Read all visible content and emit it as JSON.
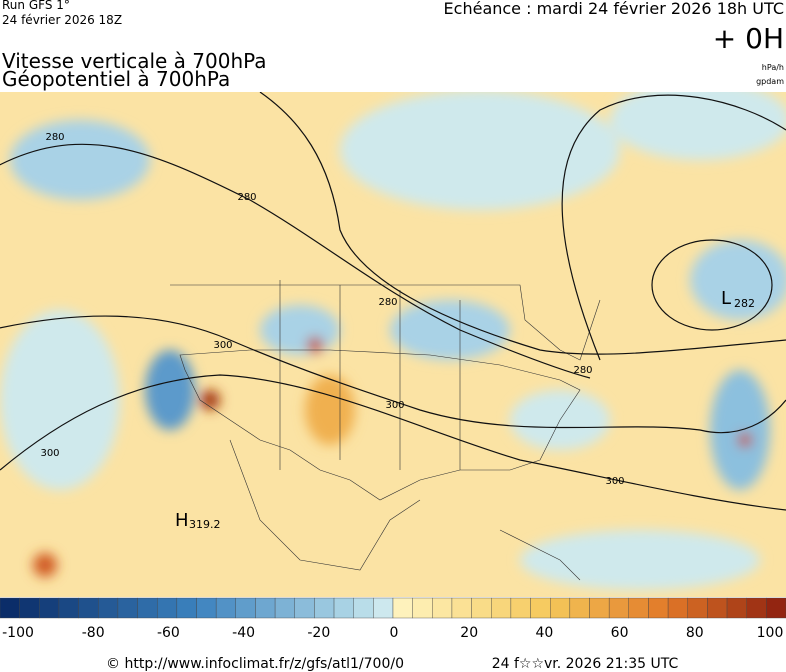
{
  "header": {
    "run": "Run GFS 1°",
    "date": "24 février 2026 18Z",
    "valid": "Echéance : mardi 24 février 2026 18h UTC",
    "lead": "+ 0H",
    "unit1": "hPa/h",
    "unit2": "gpdam"
  },
  "title": {
    "line1": "Vitesse verticale à 700hPa",
    "line2": "Géopotentiel à 700hPa"
  },
  "map": {
    "contour_labels": [
      "280",
      "280",
      "280",
      "280",
      "300",
      "300",
      "300",
      "300"
    ],
    "high": {
      "symbol": "H",
      "value": "319.2"
    },
    "low": {
      "symbol": "L",
      "value": "282"
    }
  },
  "colorbar": {
    "labels": [
      -100,
      -80,
      -60,
      -40,
      -20,
      0,
      20,
      40,
      60,
      80,
      100
    ]
  },
  "footer": {
    "source": "© http://www.infoclimat.fr/z/gfs/atl1/700/0",
    "generated": "24 f☆☆vr. 2026 21:35 UTC"
  }
}
